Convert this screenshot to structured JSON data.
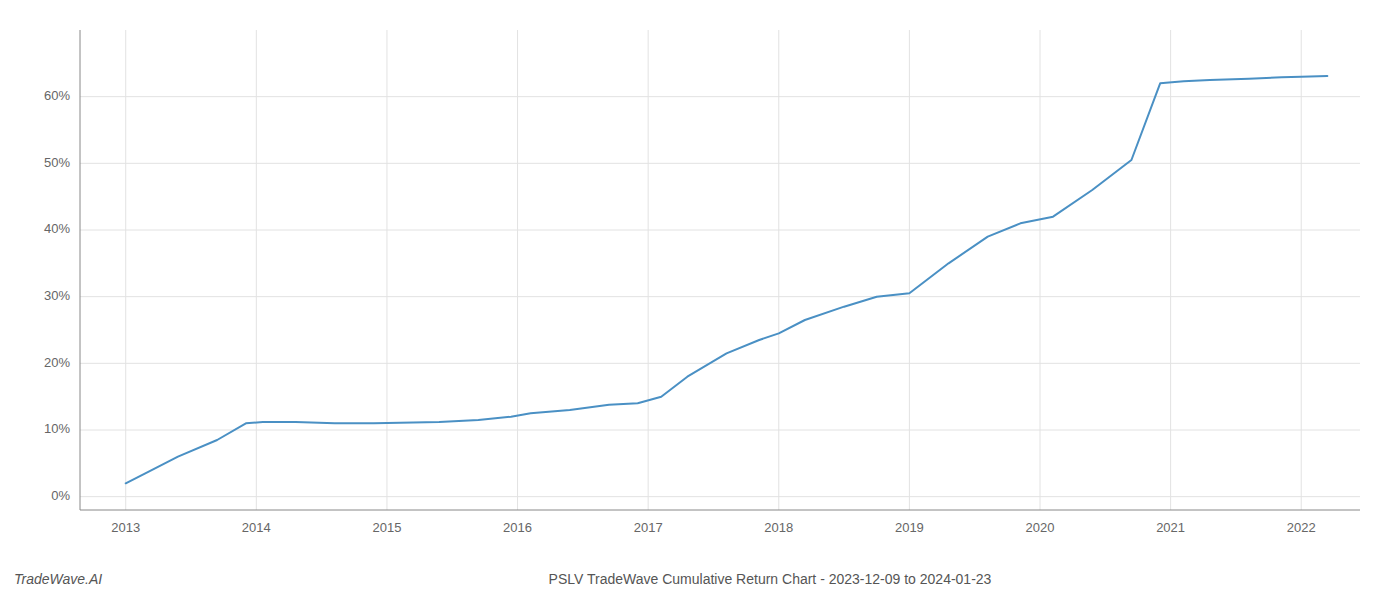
{
  "chart_data": {
    "type": "line",
    "title": "PSLV TradeWave Cumulative Return Chart - 2023-12-09 to 2024-01-23",
    "annotations": [
      "TradeWave.AI"
    ],
    "x": [
      2013.0,
      2013.15,
      2013.4,
      2013.7,
      2013.92,
      2014.05,
      2014.3,
      2014.6,
      2014.9,
      2015.1,
      2015.4,
      2015.7,
      2015.95,
      2016.1,
      2016.4,
      2016.7,
      2016.92,
      2017.1,
      2017.3,
      2017.6,
      2017.85,
      2018.0,
      2018.2,
      2018.5,
      2018.75,
      2019.0,
      2019.3,
      2019.6,
      2019.85,
      2020.1,
      2020.4,
      2020.7,
      2020.92,
      2021.1,
      2021.3,
      2021.6,
      2021.85,
      2022.0,
      2022.2
    ],
    "values": [
      2.0,
      3.5,
      6.0,
      8.5,
      11.0,
      11.2,
      11.2,
      11.0,
      11.0,
      11.1,
      11.2,
      11.5,
      12.0,
      12.5,
      13.0,
      13.8,
      14.0,
      15.0,
      18.0,
      21.5,
      23.5,
      24.5,
      26.5,
      28.5,
      30.0,
      30.5,
      35.0,
      39.0,
      41.0,
      42.0,
      46.0,
      50.5,
      62.0,
      62.3,
      62.5,
      62.7,
      62.9,
      63.0,
      63.1
    ],
    "color": "#4a90c4",
    "xlim": [
      2012.65,
      2022.45
    ],
    "ylim": [
      -2,
      70
    ],
    "xticks": [
      2013,
      2014,
      2015,
      2016,
      2017,
      2018,
      2019,
      2020,
      2021,
      2022
    ],
    "yticks": [
      {
        "value": 0,
        "label": "0%"
      },
      {
        "value": 10,
        "label": "10%"
      },
      {
        "value": 20,
        "label": "20%"
      },
      {
        "value": 30,
        "label": "30%"
      },
      {
        "value": 40,
        "label": "40%"
      },
      {
        "value": 50,
        "label": "50%"
      },
      {
        "value": 60,
        "label": "60%"
      }
    ],
    "grid": true
  }
}
